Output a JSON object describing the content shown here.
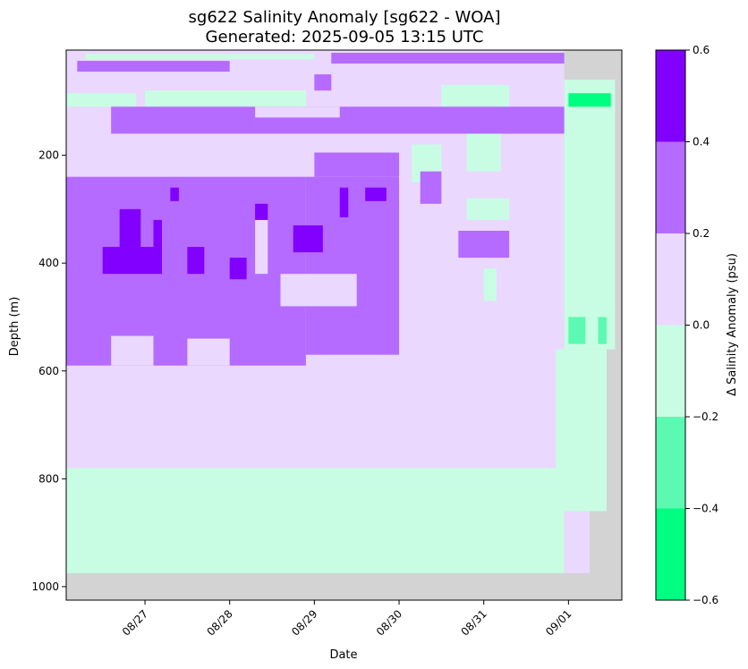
{
  "chart_data": {
    "type": "heatmap",
    "title_line1": "sg622 Salinity Anomaly [sg622 - WOA]",
    "title_line2": "Generated: 2025-09-05 13:15 UTC",
    "xlabel": "Date",
    "ylabel": "Depth (m)",
    "colorbar_label": "Δ Salinity Anomaly (psu)",
    "x_ticks": [
      "08/27",
      "08/28",
      "08/29",
      "08/30",
      "08/31",
      "09/01"
    ],
    "x_tick_days": [
      27,
      28,
      29,
      30,
      31,
      32
    ],
    "xlim_days": [
      26.07,
      32.63
    ],
    "y_ticks": [
      200,
      400,
      600,
      800,
      1000
    ],
    "ylim": [
      1025,
      5
    ],
    "y_inverted": true,
    "colorbar_ticks": [
      "0.6",
      "0.4",
      "0.2",
      "0.0",
      "−0.2",
      "−0.4",
      "−0.6"
    ],
    "colorbar_range": [
      -0.6,
      0.6
    ],
    "color_levels": [
      {
        "min": -0.6,
        "max": -0.4,
        "color": "#00ff80"
      },
      {
        "min": -0.4,
        "max": -0.2,
        "color": "#5cf9b2"
      },
      {
        "min": -0.2,
        "max": 0.0,
        "color": "#c8fde4"
      },
      {
        "min": 0.0,
        "max": 0.2,
        "color": "#ead8ff"
      },
      {
        "min": 0.2,
        "max": 0.4,
        "color": "#b56bff"
      },
      {
        "min": 0.4,
        "max": 0.6,
        "color": "#8100ff"
      }
    ],
    "no_data_color": "#d3d3d3",
    "regions": [
      {
        "level": 3,
        "x0": 26.07,
        "x1": 31.95,
        "y0": 5,
        "y1": 780
      },
      {
        "level": 2,
        "x0": 26.07,
        "x1": 31.95,
        "y0": 780,
        "y1": 975
      },
      {
        "level": 2,
        "x0": 31.95,
        "x1": 32.55,
        "y0": 60,
        "y1": 560
      },
      {
        "level": 2,
        "x0": 31.85,
        "x1": 32.45,
        "y0": 560,
        "y1": 860
      },
      {
        "level": 3,
        "x0": 31.95,
        "x1": 32.25,
        "y0": 860,
        "y1": 975
      },
      {
        "level": 2,
        "x0": 26.07,
        "x1": 26.9,
        "y0": 85,
        "y1": 110
      },
      {
        "level": 2,
        "x0": 27.0,
        "x1": 28.9,
        "y0": 80,
        "y1": 110
      },
      {
        "level": 2,
        "x0": 30.5,
        "x1": 31.3,
        "y0": 70,
        "y1": 110
      },
      {
        "level": 2,
        "x0": 30.15,
        "x1": 30.5,
        "y0": 180,
        "y1": 250
      },
      {
        "level": 2,
        "x0": 30.8,
        "x1": 31.2,
        "y0": 150,
        "y1": 230
      },
      {
        "level": 2,
        "x0": 30.8,
        "x1": 31.3,
        "y0": 280,
        "y1": 320
      },
      {
        "level": 2,
        "x0": 31.0,
        "x1": 31.15,
        "y0": 410,
        "y1": 470
      },
      {
        "level": 2,
        "x0": 26.3,
        "x1": 29.0,
        "y0": 12,
        "y1": 22
      },
      {
        "level": 4,
        "x0": 26.6,
        "x1": 31.95,
        "y0": 110,
        "y1": 160
      },
      {
        "level": 3,
        "x0": 28.3,
        "x1": 29.3,
        "y0": 110,
        "y1": 130
      },
      {
        "level": 4,
        "x0": 26.2,
        "x1": 28.0,
        "y0": 25,
        "y1": 45
      },
      {
        "level": 4,
        "x0": 29.2,
        "x1": 31.95,
        "y0": 10,
        "y1": 30
      },
      {
        "level": 4,
        "x0": 29.0,
        "x1": 29.2,
        "y0": 50,
        "y1": 80
      },
      {
        "level": 4,
        "x0": 29.0,
        "x1": 30.0,
        "y0": 195,
        "y1": 240
      },
      {
        "level": 4,
        "x0": 26.07,
        "x1": 28.9,
        "y0": 240,
        "y1": 590
      },
      {
        "level": 4,
        "x0": 28.9,
        "x1": 30.0,
        "y0": 240,
        "y1": 570
      },
      {
        "level": 4,
        "x0": 30.25,
        "x1": 30.5,
        "y0": 230,
        "y1": 290
      },
      {
        "level": 4,
        "x0": 30.7,
        "x1": 31.3,
        "y0": 340,
        "y1": 390
      },
      {
        "level": 3,
        "x0": 28.3,
        "x1": 28.45,
        "y0": 320,
        "y1": 420
      },
      {
        "level": 3,
        "x0": 28.6,
        "x1": 29.5,
        "y0": 420,
        "y1": 480
      },
      {
        "level": 3,
        "x0": 26.6,
        "x1": 27.1,
        "y0": 535,
        "y1": 590
      },
      {
        "level": 3,
        "x0": 27.5,
        "x1": 28.0,
        "y0": 540,
        "y1": 590
      },
      {
        "level": 5,
        "x0": 26.5,
        "x1": 27.2,
        "y0": 370,
        "y1": 420
      },
      {
        "level": 5,
        "x0": 26.7,
        "x1": 26.95,
        "y0": 300,
        "y1": 370
      },
      {
        "level": 5,
        "x0": 27.1,
        "x1": 27.2,
        "y0": 320,
        "y1": 370
      },
      {
        "level": 5,
        "x0": 27.5,
        "x1": 27.7,
        "y0": 370,
        "y1": 420
      },
      {
        "level": 5,
        "x0": 28.0,
        "x1": 28.2,
        "y0": 390,
        "y1": 430
      },
      {
        "level": 5,
        "x0": 28.3,
        "x1": 28.45,
        "y0": 290,
        "y1": 320
      },
      {
        "level": 5,
        "x0": 28.75,
        "x1": 29.1,
        "y0": 330,
        "y1": 380
      },
      {
        "level": 5,
        "x0": 29.6,
        "x1": 29.85,
        "y0": 260,
        "y1": 285
      },
      {
        "level": 5,
        "x0": 29.3,
        "x1": 29.4,
        "y0": 260,
        "y1": 315
      },
      {
        "level": 5,
        "x0": 27.3,
        "x1": 27.4,
        "y0": 260,
        "y1": 285
      },
      {
        "level": 0,
        "x0": 32.0,
        "x1": 32.5,
        "y0": 85,
        "y1": 110
      },
      {
        "level": 1,
        "x0": 32.0,
        "x1": 32.2,
        "y0": 500,
        "y1": 550
      },
      {
        "level": 1,
        "x0": 32.35,
        "x1": 32.45,
        "y0": 500,
        "y1": 550
      }
    ]
  }
}
